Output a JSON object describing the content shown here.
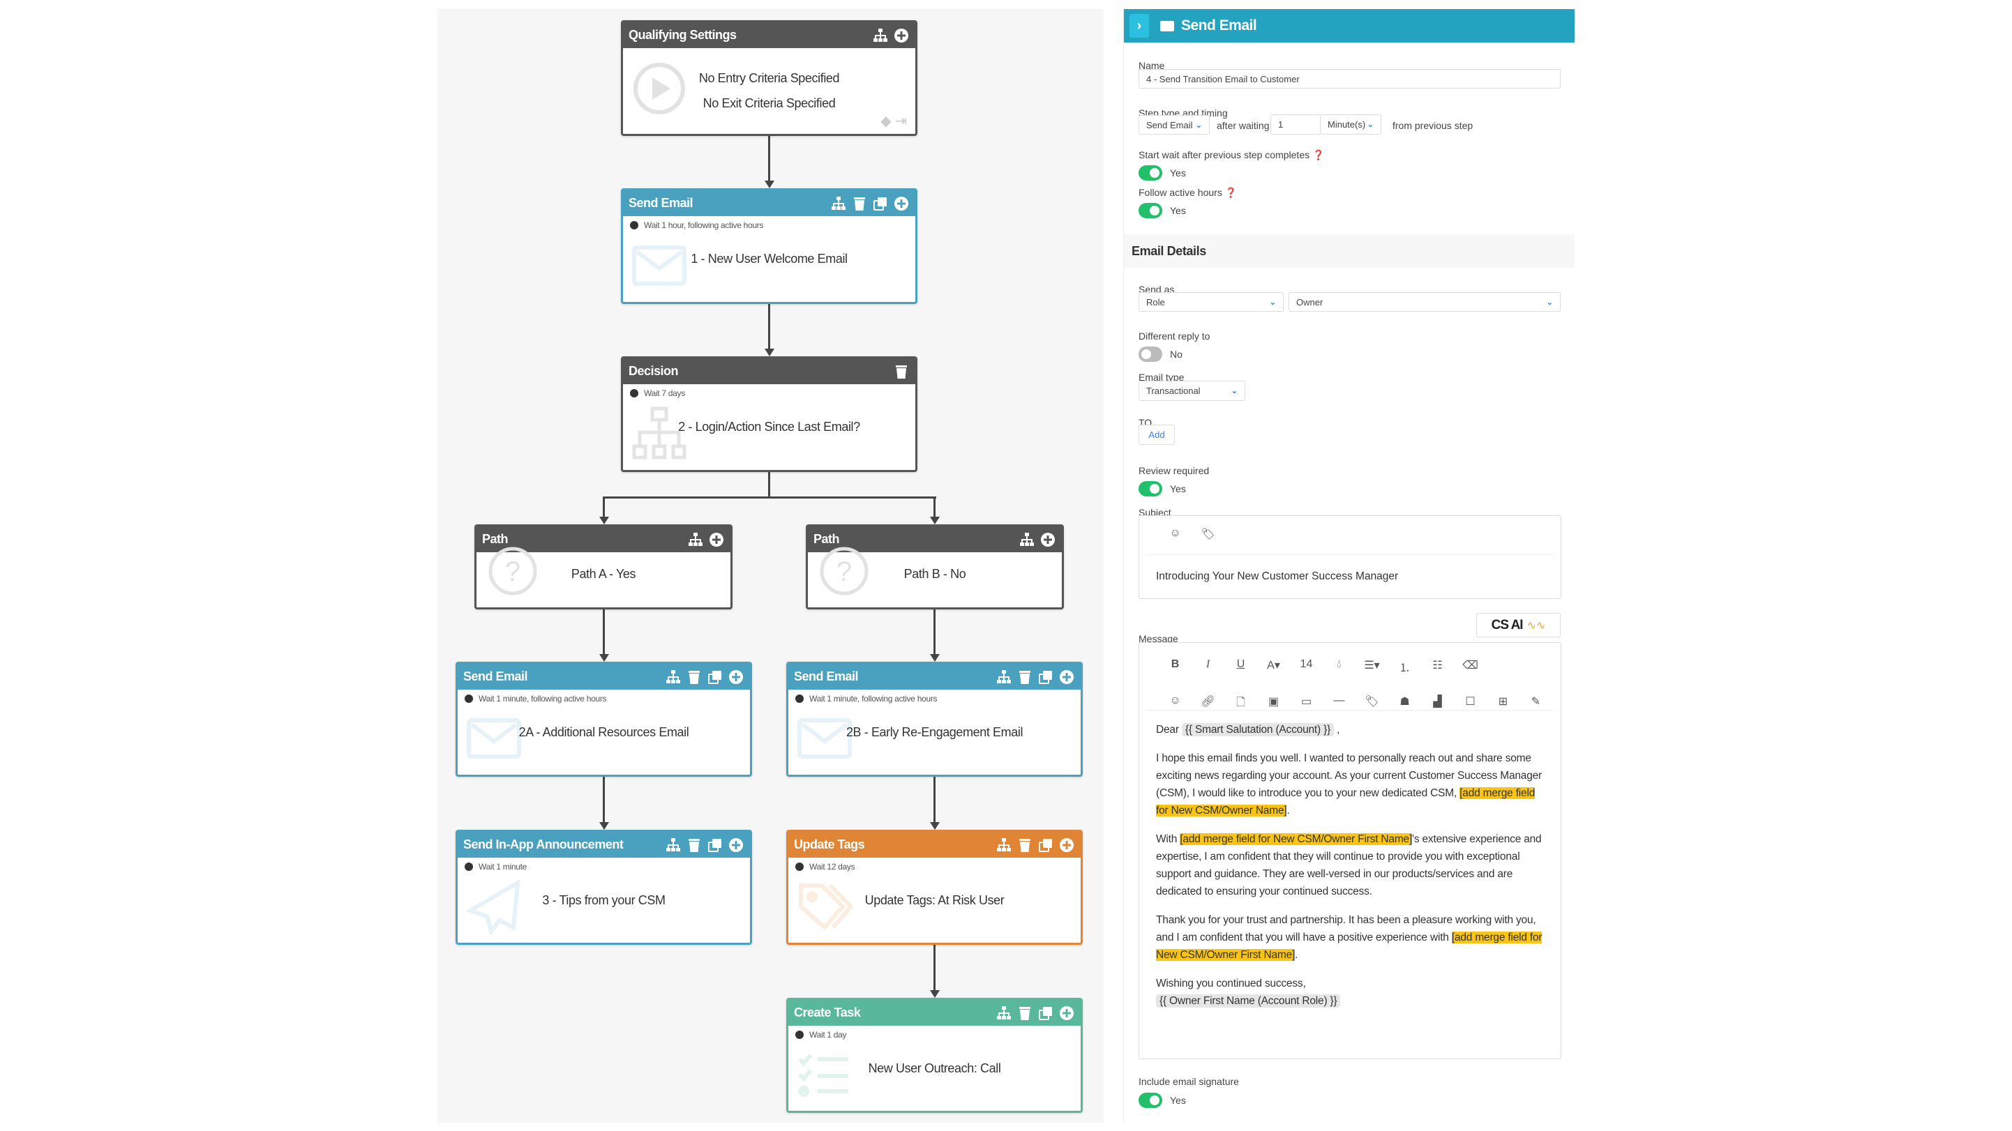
{
  "canvas": {
    "nodes": [
      {
        "type": "qualifying",
        "title": "Qualifying Settings",
        "color": "#555555",
        "actions": [
          "hierarchy",
          "add"
        ],
        "lines": [
          "No Entry Criteria Specified",
          "No Exit Criteria Specified"
        ],
        "icon": "play"
      },
      {
        "type": "send-email",
        "title": "Send Email",
        "color": "#4aa0bf",
        "actions": [
          "hierarchy",
          "delete",
          "copy",
          "add"
        ],
        "wait": "Wait 1 hour, following active hours",
        "lines": [
          "1 - New User Welcome Email"
        ],
        "icon": "envelope"
      },
      {
        "type": "decision",
        "title": "Decision",
        "color": "#555555",
        "actions": [
          "delete"
        ],
        "wait": "Wait 7 days",
        "lines": [
          "2 - Login/Action Since Last Email?"
        ],
        "icon": "org"
      },
      {
        "type": "path",
        "title": "Path",
        "color": "#555555",
        "actions": [
          "hierarchy",
          "add"
        ],
        "lines": [
          "Path A - Yes"
        ],
        "icon": "question"
      },
      {
        "type": "path",
        "title": "Path",
        "color": "#555555",
        "actions": [
          "hierarchy",
          "add"
        ],
        "lines": [
          "Path B - No"
        ],
        "icon": "question"
      },
      {
        "type": "send-email",
        "title": "Send Email",
        "color": "#4aa0bf",
        "actions": [
          "hierarchy",
          "delete",
          "copy",
          "add"
        ],
        "wait": "Wait 1 minute, following active hours",
        "lines": [
          "2A - Additional Resources Email"
        ],
        "icon": "envelope"
      },
      {
        "type": "send-email",
        "title": "Send Email",
        "color": "#4aa0bf",
        "actions": [
          "hierarchy",
          "delete",
          "copy",
          "add"
        ],
        "wait": "Wait 1 minute, following active hours",
        "lines": [
          "2B - Early Re-Engagement Email"
        ],
        "icon": "envelope"
      },
      {
        "type": "in-app",
        "title": "Send In-App Announcement",
        "color": "#4aa0bf",
        "actions": [
          "hierarchy",
          "delete",
          "copy",
          "add"
        ],
        "wait": "Wait 1 minute",
        "lines": [
          "3 - Tips from your CSM"
        ],
        "icon": "plane"
      },
      {
        "type": "update-tags",
        "title": "Update Tags",
        "color": "#e08535",
        "actions": [
          "hierarchy",
          "delete",
          "copy",
          "add"
        ],
        "wait": "Wait 12 days",
        "lines": [
          "Update Tags: At Risk User"
        ],
        "icon": "tag"
      },
      {
        "type": "create-task",
        "title": "Create Task",
        "color": "#5ab89a",
        "actions": [
          "hierarchy",
          "delete",
          "copy",
          "add"
        ],
        "wait": "Wait 1 day",
        "lines": [
          "New User Outreach: Call"
        ],
        "icon": "checklist"
      }
    ]
  },
  "panel": {
    "title": "Send Email",
    "accent": "#23a3c0",
    "name_label": "Name",
    "name_value": "4 - Send Transition Email to Customer",
    "step_label": "Step type and timing",
    "step_type": "Send Email",
    "after_waiting": "after waiting",
    "wait_value": "1",
    "wait_unit": "Minute(s)",
    "from_previous": "from previous step",
    "start_wait_label": "Start wait after previous step completes",
    "start_wait_value": "Yes",
    "active_hours_label": "Follow active hours",
    "active_hours_value": "Yes",
    "email_details": "Email Details",
    "send_as_label": "Send as",
    "send_as_type": "Role",
    "send_as_value": "Owner",
    "reply_label": "Different reply to",
    "reply_value": "No",
    "email_type_label": "Email type",
    "email_type_value": "Transactional",
    "to_label": "TO",
    "to_add": "Add",
    "review_label": "Review required",
    "review_value": "Yes",
    "subject_label": "Subject",
    "subject_value": "Introducing Your New Customer Success Manager",
    "message_label": "Message",
    "cs_ai": "CS AI",
    "font_size": "14",
    "signature_label": "Include email signature",
    "signature_value": "Yes"
  },
  "message": {
    "greeting": "Dear",
    "salutation_tag": "{{ Smart Salutation (Account) }}",
    "greeting_end": ",",
    "p1_text": "I hope this email finds you well. I wanted to personally reach out and share some exciting news regarding your account. As your current Customer Success Manager (CSM), I would like to introduce you to your new dedicated CSM, ",
    "p1_hl": "[add merge field for New CSM/Owner Name]",
    "p1_end": ".",
    "p2_start": "With ",
    "p2_hl": "[add merge field for New CSM/Owner First Name]",
    "p2_text": "'s extensive experience and expertise, I am confident that they will continue to provide you with exceptional support and guidance. They are well-versed in our products/services and are dedicated to ensuring your continued success.",
    "p3_text": "Thank you for your trust and partnership. It has been a pleasure working with you, and I am confident that you will have a positive experience with ",
    "p3_hl": "[add merge field for New CSM/Owner First Name]",
    "p3_end": ".",
    "closing": "Wishing you continued success,",
    "owner_tag": "{{ Owner First Name (Account Role) }}"
  }
}
